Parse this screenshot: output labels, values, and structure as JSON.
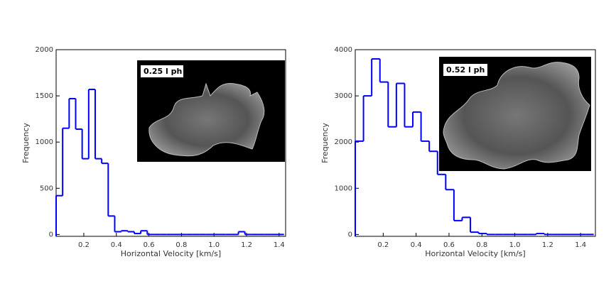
{
  "chart_data": [
    {
      "type": "histogram",
      "x_label": "Horizontal Velocity [km/s]",
      "y_label": "Frequency",
      "inset_label": "0.25 l ph",
      "color": "#0000ff",
      "bins": [
        0.03,
        0.07,
        0.11,
        0.15,
        0.19,
        0.23,
        0.27,
        0.31,
        0.35,
        0.39,
        0.43,
        0.47,
        0.51,
        0.55,
        0.59,
        0.63,
        0.67,
        0.71,
        0.75,
        0.79,
        0.83,
        0.87,
        0.91,
        0.95,
        0.99,
        1.03,
        1.07,
        1.11,
        1.15,
        1.19,
        1.23,
        1.27,
        1.31,
        1.35,
        1.39,
        1.43
      ],
      "values": [
        420,
        1150,
        1470,
        1140,
        820,
        1570,
        820,
        770,
        200,
        30,
        40,
        30,
        10,
        40,
        0,
        0,
        0,
        0,
        0,
        0,
        0,
        0,
        0,
        0,
        0,
        0,
        0,
        0,
        30,
        0,
        0,
        0,
        0,
        0,
        0
      ],
      "xlim": [
        0.03,
        1.44
      ],
      "xticks": [
        0.2,
        0.4,
        0.6,
        0.8,
        {
          "value": 1,
          "label": "1.0"
        },
        1.2,
        1.4
      ],
      "ylim": [
        -20,
        2000
      ],
      "yticks": [
        0,
        500,
        1000,
        1500,
        2000
      ]
    },
    {
      "type": "histogram",
      "x_label": "Horizontal Velocity [km/s]",
      "y_label": "Frequency",
      "inset_label": "0.52 l ph",
      "color": "#0000ff",
      "bins": [
        0.03,
        0.08,
        0.13,
        0.18,
        0.23,
        0.28,
        0.33,
        0.38,
        0.43,
        0.48,
        0.53,
        0.58,
        0.63,
        0.68,
        0.73,
        0.78,
        0.83,
        0.88,
        0.93,
        0.98,
        1.03,
        1.08,
        1.13,
        1.18,
        1.23,
        1.28,
        1.33,
        1.38,
        1.43,
        1.48
      ],
      "values": [
        2020,
        3000,
        3800,
        3300,
        2330,
        3270,
        2330,
        2650,
        2020,
        1800,
        1300,
        970,
        300,
        370,
        50,
        20,
        0,
        0,
        0,
        0,
        0,
        0,
        20,
        0,
        0,
        0,
        0,
        0,
        0
      ],
      "xlim": [
        0.03,
        1.49
      ],
      "xticks": [
        0.2,
        0.4,
        0.6,
        0.8,
        {
          "value": 1,
          "label": "1.0"
        },
        1.2,
        1.4
      ],
      "ylim": [
        -40,
        4000
      ],
      "yticks": [
        0,
        1000,
        2000,
        3000,
        4000
      ]
    }
  ]
}
